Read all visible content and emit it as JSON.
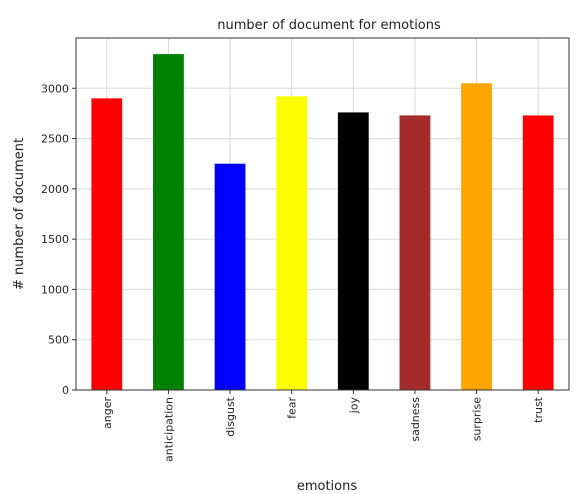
{
  "chart_data": {
    "type": "bar",
    "title": "number of document for emotions",
    "xlabel": "emotions",
    "ylabel": "# number of document",
    "categories": [
      "anger",
      "anticipation",
      "disgust",
      "fear",
      "joy",
      "sadness",
      "surprise",
      "trust"
    ],
    "values": [
      2900,
      3340,
      2250,
      2920,
      2760,
      2730,
      3050,
      2730
    ],
    "colors": [
      "#ff0000",
      "#008000",
      "#0000ff",
      "#ffff00",
      "#000000",
      "#a52a2a",
      "#ffa500",
      "#ff0000"
    ],
    "ylim": [
      0,
      3500
    ],
    "yticks": [
      0,
      500,
      1000,
      1500,
      2000,
      2500,
      3000
    ],
    "grid": true,
    "legend": "none"
  }
}
